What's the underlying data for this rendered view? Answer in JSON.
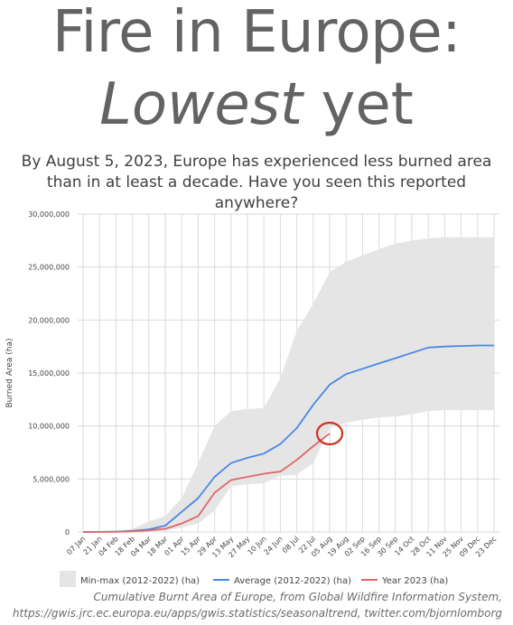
{
  "title_line1": "Fire in Europe:",
  "title_line2_emph": "Lowest",
  "title_line2_rest": "yet",
  "subtitle": "By August 5, 2023, Europe has experienced less burned area than in at least a decade. Have you seen this reported anywhere?",
  "caption_line1": "Cumulative Burnt Area of Europe, from Global Wildfire Information System,",
  "caption_line2": "https://gwis.jrc.ec.europa.eu/apps/gwis.statistics/seasonaltrend, twitter.com/bjornlomborg",
  "colors": {
    "band": "#e5e5e5",
    "average": "#4a86e8",
    "year2023": "#e06666",
    "highlight_circle": "#cc3322",
    "grid": "#dadada"
  },
  "chart_data": {
    "type": "area",
    "ylabel": "Burned Area (ha)",
    "ylim": [
      0,
      30000000
    ],
    "yticks": [
      0,
      5000000,
      10000000,
      15000000,
      20000000,
      25000000,
      30000000
    ],
    "ytick_labels": [
      "0",
      "5,000,000",
      "10,000,000",
      "15,000,000",
      "20,000,000",
      "25,000,000",
      "30,000,000"
    ],
    "x_labels": [
      "07 Jan",
      "21 Jan",
      "04 Feb",
      "18 Feb",
      "04 Mar",
      "18 Mar",
      "01 Apr",
      "15 Apr",
      "29 Apr",
      "13 May",
      "27 May",
      "10 Jun",
      "24 Jun",
      "08 Jul",
      "22 Jul",
      "05 Aug",
      "19 Aug",
      "02 Sep",
      "16 Sep",
      "30 Sep",
      "14 Oct",
      "28 Oct",
      "11 Nov",
      "25 Nov",
      "09 Dec",
      "23 Dec"
    ],
    "grid": true,
    "legend_position": "bottom",
    "annotation": "circle around end of Year 2023 line",
    "series": [
      {
        "name": "Min-max (2012-2022) (ha)",
        "kind": "band",
        "min": [
          0,
          0,
          0,
          0,
          50000,
          100000,
          400000,
          800000,
          2000000,
          4300000,
          4500000,
          4600000,
          5300000,
          5400000,
          6500000,
          9800000,
          10300000,
          10600000,
          10800000,
          10900000,
          11100000,
          11400000,
          11500000,
          11500000,
          11500000,
          11500000
        ],
        "max": [
          0,
          0,
          50000,
          300000,
          1000000,
          1500000,
          3200000,
          6500000,
          10000000,
          11400000,
          11600000,
          11700000,
          14500000,
          19000000,
          21500000,
          24500000,
          25500000,
          26100000,
          26700000,
          27200000,
          27500000,
          27700000,
          27800000,
          27800000,
          27800000,
          27800000
        ]
      },
      {
        "name": "Average (2012-2022) (ha)",
        "kind": "line",
        "values": [
          0,
          10000,
          30000,
          100000,
          250000,
          600000,
          1900000,
          3200000,
          5200000,
          6500000,
          7000000,
          7400000,
          8300000,
          9800000,
          12000000,
          13900000,
          14900000,
          15400000,
          15900000,
          16400000,
          16900000,
          17400000,
          17500000,
          17550000,
          17600000,
          17600000
        ]
      },
      {
        "name": "Year 2023 (ha)",
        "kind": "line",
        "values": [
          0,
          5000,
          20000,
          50000,
          150000,
          300000,
          800000,
          1500000,
          3700000,
          4900000,
          5200000,
          5500000,
          5700000,
          6800000,
          8100000,
          9300000,
          null,
          null,
          null,
          null,
          null,
          null,
          null,
          null,
          null,
          null
        ]
      }
    ]
  }
}
